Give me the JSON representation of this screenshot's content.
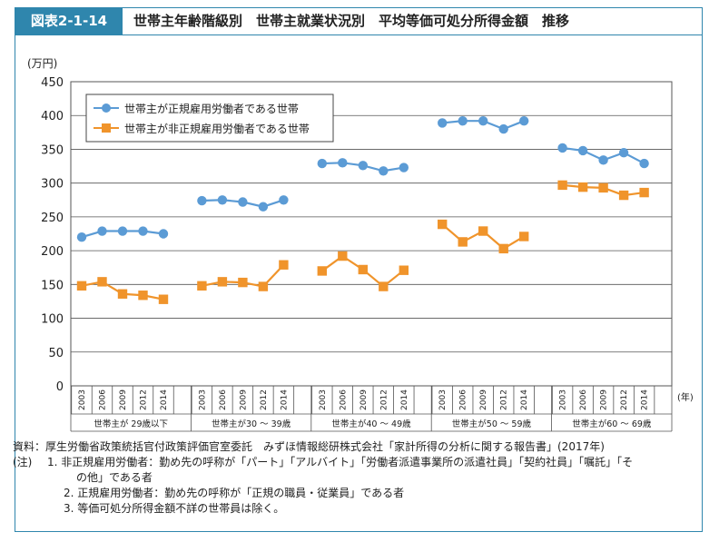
{
  "figure": {
    "label": "図表2-1-14",
    "title": "世帯主年齢階級別　世帯主就業状況別　平均等価可処分所得金額　推移"
  },
  "colors": {
    "accent": "#2f86ad",
    "regular": "#5b9bd5",
    "nonregular": "#f0942b"
  },
  "chart_data": {
    "type": "line",
    "ylabel": "(万円)",
    "xunit": "(年)",
    "ylim": [
      0,
      450
    ],
    "yticks": [
      0,
      50,
      100,
      150,
      200,
      250,
      300,
      350,
      400,
      450
    ],
    "grid": true,
    "legend_position": "top-left",
    "groups": [
      {
        "label": "世帯主が 29歳以下",
        "years": [
          "2003",
          "2006",
          "2009",
          "2012",
          "2014"
        ]
      },
      {
        "label": "世帯主が30 ～ 39歳",
        "years": [
          "2003",
          "2006",
          "2009",
          "2012",
          "2014"
        ]
      },
      {
        "label": "世帯主が40 ～ 49歳",
        "years": [
          "2003",
          "2006",
          "2009",
          "2012",
          "2014"
        ]
      },
      {
        "label": "世帯主が50 ～ 59歳",
        "years": [
          "2003",
          "2006",
          "2009",
          "2012",
          "2014"
        ]
      },
      {
        "label": "世帯主が60 ～ 69歳",
        "years": [
          "2003",
          "2006",
          "2009",
          "2012",
          "2014"
        ]
      }
    ],
    "series": [
      {
        "name": "世帯主が正規雇用労働者である世帯",
        "marker": "circle",
        "values": [
          [
            220,
            229,
            229,
            229,
            225
          ],
          [
            274,
            275,
            272,
            265,
            275
          ],
          [
            329,
            330,
            326,
            318,
            323
          ],
          [
            389,
            392,
            392,
            380,
            392
          ],
          [
            352,
            348,
            334,
            345,
            329
          ]
        ]
      },
      {
        "name": "世帯主が非正規雇用労働者である世帯",
        "marker": "square",
        "values": [
          [
            148,
            154,
            136,
            134,
            128
          ],
          [
            148,
            154,
            153,
            147,
            179
          ],
          [
            170,
            192,
            172,
            147,
            171
          ],
          [
            239,
            213,
            229,
            203,
            221
          ],
          [
            297,
            294,
            293,
            282,
            286
          ]
        ]
      }
    ]
  },
  "notes": {
    "source": "資料：厚生労働省政策統括官付政策評価官室委託　みずほ情報総研株式会社「家計所得の分析に関する報告書」(2017年)",
    "key": "(注)",
    "n1_line1": "1.  非正規雇用労働者：勤め先の呼称が「パート」「アルバイト」「労働者派遣事業所の派遣社員」「契約社員」「嘱託」「そ",
    "n1_line2": "の他」である者",
    "n2": "2.  正規雇用労働者：勤め先の呼称が「正規の職員・従業員」である者",
    "n3": "3.  等価可処分所得金額不詳の世帯員は除く。"
  }
}
